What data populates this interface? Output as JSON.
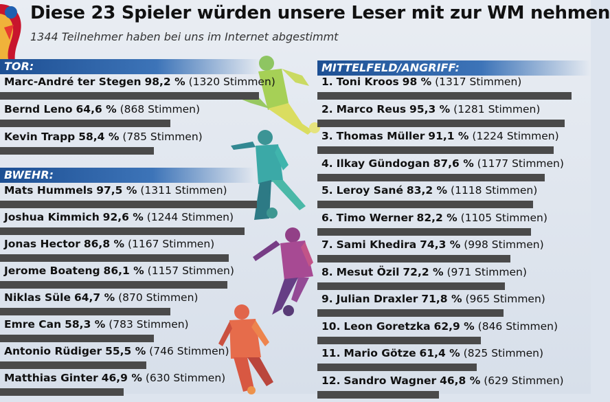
{
  "title": "Diese 23 Spieler würden unsere Leser mit zur WM nehmen",
  "subtitle": "1344 Teilnehmer haben bei uns im Internet abgestimmt",
  "colors": {
    "bar": "#4a4a4a",
    "section_header": "#1d4f93"
  },
  "logo_icon": "world-cup-trophy-icon",
  "chart_data": {
    "type": "bar",
    "orientation": "horizontal",
    "unit": "%",
    "xlim": [
      0,
      100
    ],
    "groups": [
      {
        "name": "TOR:",
        "players": [
          {
            "rank": "",
            "name": "Marc-André ter Stegen",
            "pct": 98.2,
            "pct_label": "98,2 %",
            "votes_label": "(1320 Stimmen)"
          },
          {
            "rank": "",
            "name": "Bernd Leno",
            "pct": 64.6,
            "pct_label": "64,6 %",
            "votes_label": "(868 Stimmen)"
          },
          {
            "rank": "",
            "name": "Kevin Trapp",
            "pct": 58.4,
            "pct_label": "58,4 %",
            "votes_label": "(785 Stimmen)"
          }
        ]
      },
      {
        "name": "BWEHR:",
        "players": [
          {
            "rank": "",
            "name": "Mats Hummels",
            "pct": 97.5,
            "pct_label": "97,5 %",
            "votes_label": "(1311 Stimmen)"
          },
          {
            "rank": "",
            "name": "Joshua Kimmich",
            "pct": 92.6,
            "pct_label": "92,6 %",
            "votes_label": "(1244 Stimmen)"
          },
          {
            "rank": "",
            "name": "Jonas Hector",
            "pct": 86.8,
            "pct_label": "86,8 %",
            "votes_label": "(1167 Stimmen)"
          },
          {
            "rank": "",
            "name": "Jerome Boateng",
            "pct": 86.1,
            "pct_label": "86,1 %",
            "votes_label": "(1157 Stimmen)"
          },
          {
            "rank": "",
            "name": "Niklas Süle",
            "pct": 64.7,
            "pct_label": "64,7 %",
            "votes_label": "(870 Stimmen)"
          },
          {
            "rank": "",
            "name": "Emre Can",
            "pct": 58.3,
            "pct_label": "58,3 %",
            "votes_label": "(783 Stimmen)"
          },
          {
            "rank": "",
            "name": "Antonio Rüdiger",
            "pct": 55.5,
            "pct_label": "55,5 %",
            "votes_label": "(746 Stimmen)"
          },
          {
            "rank": "",
            "name": "Matthias Ginter",
            "pct": 46.9,
            "pct_label": "46,9 %",
            "votes_label": "(630 Stimmen)"
          }
        ]
      },
      {
        "name": "MITTELFELD/ANGRIFF:",
        "players": [
          {
            "rank": "1.",
            "name": "Toni Kroos",
            "pct": 98,
            "pct_label": "98 %",
            "votes_label": "(1317 Stimmen)"
          },
          {
            "rank": "2.",
            "name": "Marco Reus",
            "pct": 95.3,
            "pct_label": "95,3 %",
            "votes_label": "(1281 Stimmen)"
          },
          {
            "rank": "3.",
            "name": "Thomas Müller",
            "pct": 91.1,
            "pct_label": "91,1 %",
            "votes_label": "(1224 Stimmen)"
          },
          {
            "rank": "4.",
            "name": "Ilkay Gündogan",
            "pct": 87.6,
            "pct_label": "87,6 %",
            "votes_label": "(1177 Stimmen)"
          },
          {
            "rank": "5.",
            "name": "Leroy Sané",
            "pct": 83.2,
            "pct_label": "83,2 %",
            "votes_label": "(1118 Stimmen)"
          },
          {
            "rank": "6.",
            "name": "Timo Werner",
            "pct": 82.2,
            "pct_label": "82,2 %",
            "votes_label": "(1105 Stimmen)"
          },
          {
            "rank": "7.",
            "name": "Sami Khedira",
            "pct": 74.3,
            "pct_label": "74,3 %",
            "votes_label": "(998 Stimmen)"
          },
          {
            "rank": "8.",
            "name": "Mesut Özil",
            "pct": 72.2,
            "pct_label": "72,2 %",
            "votes_label": "(971 Stimmen)"
          },
          {
            "rank": "9.",
            "name": "Julian Draxler",
            "pct": 71.8,
            "pct_label": "71,8 %",
            "votes_label": "(965 Stimmen)"
          },
          {
            "rank": "10.",
            "name": "Leon Goretzka",
            "pct": 62.9,
            "pct_label": "62,9 %",
            "votes_label": "(846 Stimmen)"
          },
          {
            "rank": "11.",
            "name": "Mario Götze",
            "pct": 61.4,
            "pct_label": "61,4 %",
            "votes_label": "(825 Stimmen)"
          },
          {
            "rank": "12.",
            "name": "Sandro Wagner",
            "pct": 46.8,
            "pct_label": "46,8 %",
            "votes_label": "(629 Stimmen)"
          }
        ]
      }
    ]
  }
}
